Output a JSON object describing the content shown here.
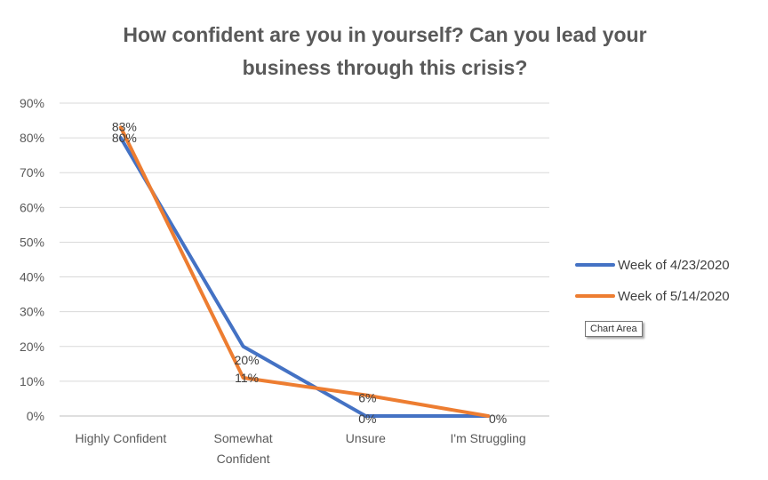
{
  "chart_data": {
    "type": "line",
    "title_lines": [
      "How confident are you in yourself? Can you lead your",
      "business through this crisis?"
    ],
    "categories": [
      "Highly Confident",
      "Somewhat Confident",
      "Unsure",
      "I'm Struggling"
    ],
    "category_label_lines": [
      [
        "Highly Confident"
      ],
      [
        "Somewhat",
        "Confident"
      ],
      [
        "Unsure"
      ],
      [
        "I'm Struggling"
      ]
    ],
    "series": [
      {
        "name": "Week of 4/23/2020",
        "values": [
          80,
          20,
          0,
          0
        ],
        "color": "#4472C4",
        "labels": [
          "80%",
          "20%",
          "0%",
          "0%"
        ]
      },
      {
        "name": "Week of 5/14/2020",
        "values": [
          83,
          11,
          6,
          0
        ],
        "color": "#ED7D31",
        "labels": [
          "83%",
          "11%",
          "6%",
          ""
        ]
      }
    ],
    "ylim": [
      0,
      90
    ],
    "yticks": [
      "0%",
      "10%",
      "20%",
      "30%",
      "40%",
      "50%",
      "60%",
      "70%",
      "80%",
      "90%"
    ],
    "grid": true,
    "legend_position": "right"
  },
  "tooltip": "Chart Area"
}
